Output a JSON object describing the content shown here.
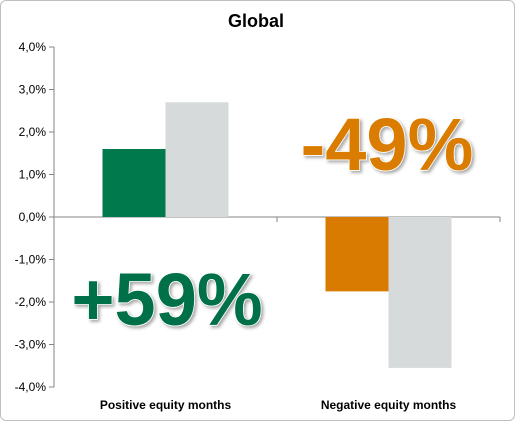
{
  "chart_data": {
    "type": "bar",
    "title": "Global",
    "xlabel": "",
    "ylabel": "",
    "ylim": [
      -4.0,
      4.0
    ],
    "yticks": [
      "4,0%",
      "3,0%",
      "2,0%",
      "1,0%",
      "0,0%",
      "-1,0%",
      "-2,0%",
      "-3,0%",
      "-4,0%"
    ],
    "categories": [
      "Positive equity months",
      "Negative equity months"
    ],
    "series": [
      {
        "values": [
          1.6,
          -1.75
        ],
        "colors": [
          "#007a4d",
          "#d97b00"
        ]
      },
      {
        "values": [
          2.7,
          -3.55
        ],
        "colors": [
          "#d6dadb",
          "#d6dadb"
        ]
      }
    ],
    "annotations": [
      {
        "text": "+59%",
        "color": "#00704a",
        "category": 0
      },
      {
        "text": "-49%",
        "color": "#d97b00",
        "category": 1
      }
    ],
    "grid": false
  }
}
